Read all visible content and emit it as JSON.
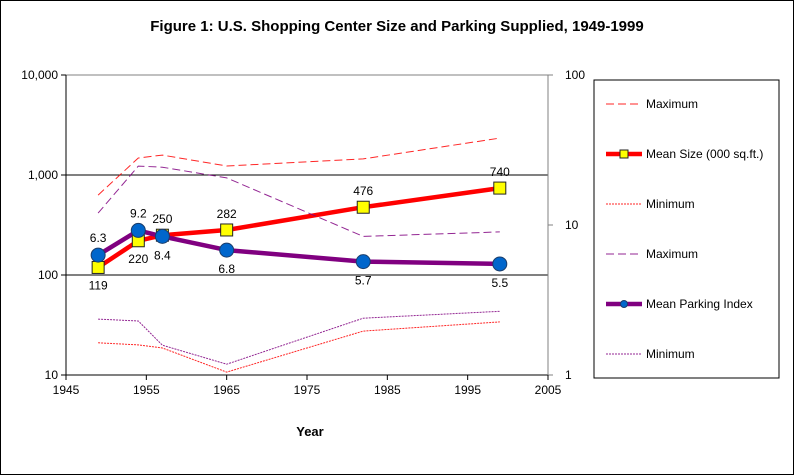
{
  "chart_data": {
    "type": "line",
    "title": "Figure 1: U.S. Shopping Center Size and Parking Supplied, 1949-1999",
    "xlabel": "Year",
    "ylabel_left": "",
    "ylabel_right": "",
    "x_ticks": [
      "1945",
      "1955",
      "1965",
      "1975",
      "1985",
      "1995",
      "2005"
    ],
    "xlim": [
      1945,
      2005
    ],
    "y_left": {
      "scale": "log",
      "lim": [
        10,
        10000
      ],
      "ticks": [
        "10",
        "100",
        "1,000",
        "10,000"
      ],
      "tick_values": [
        10,
        100,
        1000,
        10000
      ]
    },
    "y_right": {
      "scale": "log",
      "lim": [
        1,
        100
      ],
      "ticks": [
        "1",
        "10",
        "100"
      ],
      "tick_values": [
        1,
        10,
        100
      ]
    },
    "grid": "horizontal major on left axis",
    "legend_position": "right",
    "x": [
      1949,
      1954,
      1957,
      1965,
      1982,
      1999
    ],
    "series": [
      {
        "name": "Maximum",
        "axis": "left",
        "color": "#ff0000",
        "style": "dashed",
        "values": [
          630,
          1480,
          1580,
          1230,
          1450,
          2340
        ]
      },
      {
        "name": "Mean Size (000 sq.ft.)",
        "axis": "left",
        "color": "#ff0000",
        "style": "thick",
        "marker": "square",
        "marker_color": "#ffff00",
        "values": [
          119,
          220,
          250,
          282,
          476,
          740
        ],
        "labels": [
          "119",
          "220",
          "250",
          "282",
          "476",
          "740"
        ]
      },
      {
        "name": "Minimum",
        "axis": "left",
        "color": "#ff0000",
        "style": "dotted",
        "values": [
          21,
          20,
          18.6,
          10.7,
          27.5,
          34
        ]
      },
      {
        "name": "Maximum",
        "axis": "right",
        "color": "#800080",
        "style": "dashed",
        "values": [
          12,
          24.7,
          24.3,
          20.6,
          8.4,
          9.0
        ]
      },
      {
        "name": "Mean Parking Index",
        "axis": "right",
        "color": "#800080",
        "style": "thick",
        "marker": "circle",
        "marker_color": "#0066cc",
        "values": [
          6.3,
          9.2,
          8.4,
          6.8,
          5.7,
          5.5
        ],
        "labels": [
          "6.3",
          "9.2",
          "8.4",
          "6.8",
          "5.7",
          "5.5"
        ]
      },
      {
        "name": "Minimum",
        "axis": "right",
        "color": "#800080",
        "style": "dotted",
        "values": [
          2.36,
          2.29,
          1.58,
          1.18,
          2.39,
          2.66
        ]
      }
    ]
  }
}
